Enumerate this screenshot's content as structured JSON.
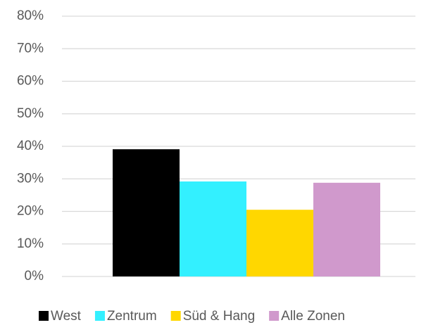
{
  "chart_data": {
    "type": "bar",
    "categories": [
      null
    ],
    "series": [
      {
        "name": "West",
        "color": "#000000",
        "values": [
          39.1
        ]
      },
      {
        "name": "Zentrum",
        "color": "#33f0ff",
        "values": [
          29.2
        ]
      },
      {
        "name": "Süd & Hang",
        "color": "#ffd700",
        "values": [
          20.5
        ]
      },
      {
        "name": "Alle Zonen",
        "color": "#d099cc",
        "values": [
          28.8
        ]
      }
    ],
    "ylim": [
      0,
      80
    ],
    "yticks": [
      {
        "value": 0,
        "label": "0%"
      },
      {
        "value": 10,
        "label": "10%"
      },
      {
        "value": 20,
        "label": "20%"
      },
      {
        "value": 30,
        "label": "30%"
      },
      {
        "value": 40,
        "label": "40%"
      },
      {
        "value": 50,
        "label": "50%"
      },
      {
        "value": 60,
        "label": "60%"
      },
      {
        "value": 70,
        "label": "70%"
      },
      {
        "value": 80,
        "label": "80%"
      }
    ],
    "grid": true,
    "legend": "bottom"
  }
}
